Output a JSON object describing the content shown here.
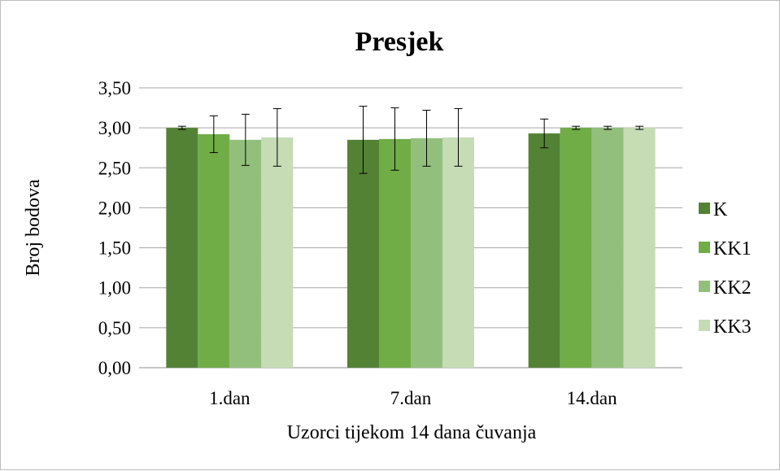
{
  "chart_data": {
    "type": "bar",
    "title": "Presjek",
    "xlabel": "Uzorci tijekom 14 dana čuvanja",
    "ylabel": "Broj bodova",
    "categories": [
      "1.dan",
      "7.dan",
      "14.dan"
    ],
    "ylim": [
      0,
      3.5
    ],
    "yticks": [
      "0,00",
      "0,50",
      "1,00",
      "1,50",
      "2,00",
      "2,50",
      "3,00",
      "3,50"
    ],
    "grid": true,
    "legend_position": "right",
    "series": [
      {
        "name": "K",
        "color": "#548235",
        "values": [
          3.0,
          2.85,
          2.93
        ],
        "errors": [
          0.02,
          0.42,
          0.18
        ]
      },
      {
        "name": "KK1",
        "color": "#70ad47",
        "values": [
          2.92,
          2.86,
          3.0
        ],
        "errors": [
          0.23,
          0.39,
          0.02
        ]
      },
      {
        "name": "KK2",
        "color": "#92c07c",
        "values": [
          2.85,
          2.87,
          3.0
        ],
        "errors": [
          0.32,
          0.35,
          0.02
        ]
      },
      {
        "name": "KK3",
        "color": "#c5dcb5",
        "values": [
          2.88,
          2.88,
          3.0
        ],
        "errors": [
          0.36,
          0.36,
          0.02
        ]
      }
    ]
  }
}
